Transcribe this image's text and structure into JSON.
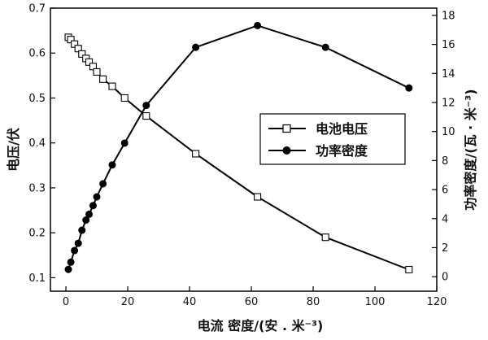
{
  "chart_data": {
    "type": "line",
    "xlabel": "电流  密度/(安 . 米⁻³)",
    "ylabel": "电压/伏",
    "y2label": "功率密度/(瓦 · 米⁻³)",
    "xlim": [
      -5,
      120
    ],
    "ylim": [
      0.07,
      0.7
    ],
    "y2lim": [
      -1,
      18.5
    ],
    "x_ticks": [
      "0",
      "20",
      "40",
      "60",
      "80",
      "100",
      "120"
    ],
    "y_ticks": [
      "0.1",
      "0.2",
      "0.3",
      "0.4",
      "0.5",
      "0.6",
      "0.7"
    ],
    "y2_ticks": [
      "0",
      "2",
      "4",
      "6",
      "8",
      "10",
      "12",
      "14",
      "16",
      "18"
    ],
    "legend_position": "center-right",
    "series": [
      {
        "name": "电池电压",
        "axis": "left",
        "marker": "open-square",
        "color": "#000000",
        "points": [
          [
            0.8,
            0.635
          ],
          [
            1.6,
            0.63
          ],
          [
            2.8,
            0.62
          ],
          [
            4.0,
            0.61
          ],
          [
            5.2,
            0.598
          ],
          [
            6.5,
            0.588
          ],
          [
            7.5,
            0.58
          ],
          [
            8.8,
            0.57
          ],
          [
            10.0,
            0.558
          ],
          [
            12.0,
            0.542
          ],
          [
            15.0,
            0.526
          ],
          [
            19.0,
            0.5
          ],
          [
            26.0,
            0.46
          ],
          [
            42.0,
            0.376
          ],
          [
            62.0,
            0.28
          ],
          [
            84.0,
            0.19
          ],
          [
            111.0,
            0.118
          ]
        ]
      },
      {
        "name": "功率密度",
        "axis": "right",
        "marker": "filled-circle",
        "color": "#000000",
        "points": [
          [
            0.8,
            0.5
          ],
          [
            1.6,
            1.0
          ],
          [
            2.8,
            1.8
          ],
          [
            4.0,
            2.3
          ],
          [
            5.2,
            3.2
          ],
          [
            6.5,
            3.9
          ],
          [
            7.5,
            4.3
          ],
          [
            8.8,
            4.9
          ],
          [
            10.0,
            5.5
          ],
          [
            12.0,
            6.4
          ],
          [
            15.0,
            7.7
          ],
          [
            19.0,
            9.2
          ],
          [
            26.0,
            11.8
          ],
          [
            42.0,
            15.8
          ],
          [
            62.0,
            17.3
          ],
          [
            84.0,
            15.8
          ],
          [
            111.0,
            13.0
          ]
        ]
      }
    ]
  }
}
